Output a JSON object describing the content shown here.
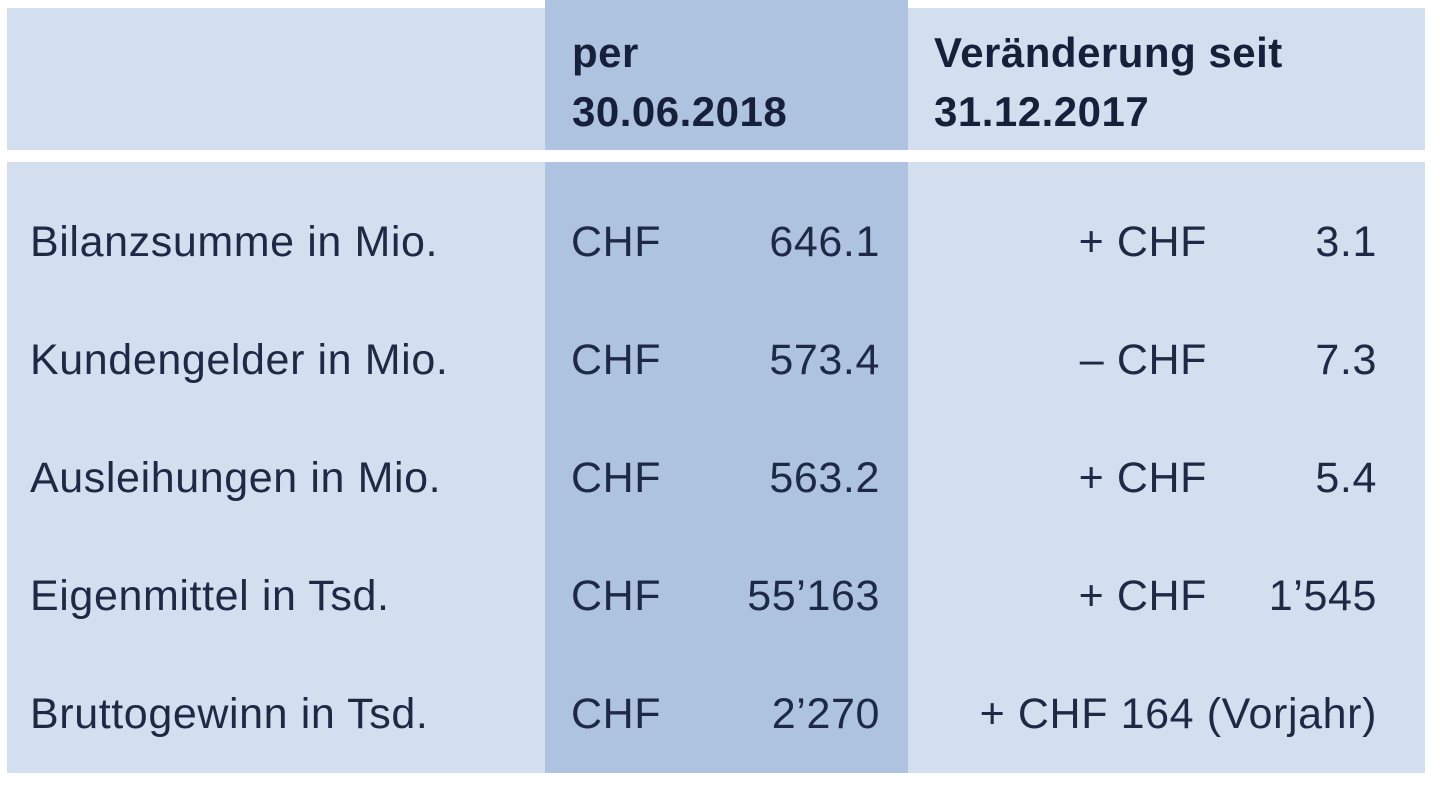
{
  "table": {
    "header": {
      "period_line1": "per",
      "period_line2": "30.06.2018",
      "change_line1": "Veränderung seit",
      "change_line2": "31.12.2017"
    },
    "rows": [
      {
        "label": "Bilanzsumme in Mio.",
        "currency": "CHF",
        "value": "646.1",
        "change_label": "+ CHF",
        "change_value": "3.1"
      },
      {
        "label": "Kundengelder in Mio.",
        "currency": "CHF",
        "value": "573.4",
        "change_label": "– CHF",
        "change_value": "7.3"
      },
      {
        "label": "Ausleihungen in Mio.",
        "currency": "CHF",
        "value": "563.2",
        "change_label": "+ CHF",
        "change_value": "5.4"
      },
      {
        "label": "Eigenmittel in Tsd.",
        "currency": "CHF",
        "value": "55’163",
        "change_label": "+ CHF",
        "change_value": "1’545"
      },
      {
        "label": "Bruttogewinn in Tsd.",
        "currency": "CHF",
        "value": "2’270",
        "change_label": "+ CHF 164 (Vorjahr)",
        "change_value": ""
      }
    ],
    "colors": {
      "light_cell": "#d3dfee",
      "dark_cell": "#aec3df",
      "body_text": "#1d2945",
      "header_text": "#16203a",
      "background": "#ffffff"
    }
  },
  "chart_data": {
    "type": "table",
    "title": "",
    "columns": [
      "",
      "per 30.06.2018",
      "Veränderung seit 31.12.2017"
    ],
    "rows": [
      [
        "Bilanzsumme in Mio.",
        "CHF 646.1",
        "+ CHF 3.1"
      ],
      [
        "Kundengelder in Mio.",
        "CHF 573.4",
        "– CHF 7.3"
      ],
      [
        "Ausleihungen in Mio.",
        "CHF 563.2",
        "+ CHF 5.4"
      ],
      [
        "Eigenmittel in Tsd.",
        "CHF 55’163",
        "+ CHF 1’545"
      ],
      [
        "Bruttogewinn in Tsd.",
        "CHF 2’270",
        "+ CHF 164 (Vorjahr)"
      ]
    ]
  }
}
